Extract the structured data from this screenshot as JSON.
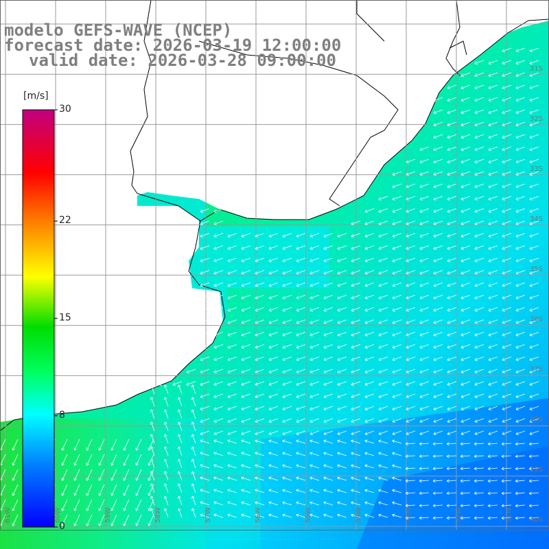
{
  "header": {
    "title": "modelo GEFS-WAVE (NCEP)",
    "forecast": "forecast date: 2026-03-19 12:00:00",
    "valid": "valid date: 2026-03-28 09:00:00"
  },
  "colorbar": {
    "unit": "[m/s]",
    "ticks": [
      "30",
      "22",
      "15",
      "8",
      "0"
    ],
    "tick_values": [
      30,
      22,
      15,
      8,
      0
    ],
    "colors": [
      "#0000ff",
      "#00a0ff",
      "#00ffff",
      "#00ff60",
      "#00e000",
      "#80ff00",
      "#ffff00",
      "#ffa000",
      "#ff4000",
      "#ff0000",
      "#e00060",
      "#c00080"
    ]
  },
  "lat_labels": [
    "31S",
    "32S",
    "33S",
    "34S",
    "35S",
    "36S",
    "37S",
    "38S",
    "39S",
    "40S",
    "41S"
  ],
  "lon_labels": [
    "61W",
    "60W",
    "59W",
    "58W",
    "57W",
    "56W",
    "55W",
    "54W",
    "53W",
    "52W",
    "51W"
  ],
  "map": {
    "land_color": "#ffffff",
    "coast_color": "#000000",
    "grid_color": "#999999",
    "arrow_color": "#ffffff"
  }
}
